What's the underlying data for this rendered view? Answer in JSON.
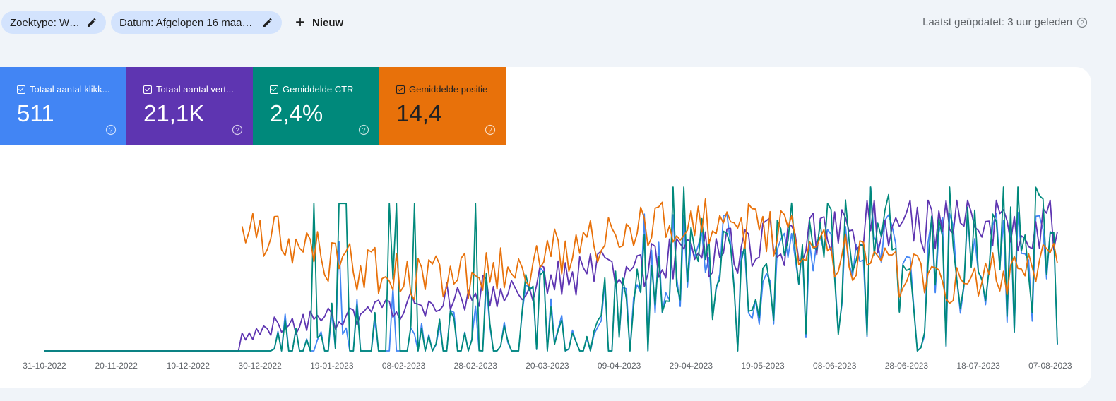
{
  "toolbar": {
    "search_type_chip": "Zoektype: Web",
    "date_chip": "Datum: Afgelopen 16 maan...",
    "new_button": "Nieuw",
    "last_updated": "Laatst geüpdatet: 3 uur geleden"
  },
  "metrics": [
    {
      "label": "Totaal aantal klikk...",
      "value": "511",
      "color": "#4285f4"
    },
    {
      "label": "Totaal aantal vert...",
      "value": "21,1K",
      "color": "#5e35b1"
    },
    {
      "label": "Gemiddelde CTR",
      "value": "2,4%",
      "color": "#00897b"
    },
    {
      "label": "Gemiddelde positie",
      "value": "14,4",
      "color": "#e8710a"
    }
  ],
  "icons": {
    "edit": "pencil-icon",
    "add": "plus-icon",
    "help": "help-circle-icon",
    "checkbox": "checkbox-checked-icon"
  },
  "chart_data": {
    "type": "line",
    "x_ticks": [
      "31-10-2022",
      "20-11-2022",
      "10-12-2022",
      "30-12-2022",
      "19-01-2023",
      "08-02-2023",
      "28-02-2023",
      "20-03-2023",
      "09-04-2023",
      "29-04-2023",
      "19-05-2023",
      "08-06-2023",
      "28-06-2023",
      "18-07-2023",
      "07-08-2023"
    ],
    "x_range": [
      "31-10-2022",
      "09-08-2023"
    ],
    "series": [
      {
        "key": "clicks",
        "color": "#4285f4"
      },
      {
        "key": "impressions",
        "color": "#5e35b1"
      },
      {
        "key": "ctr",
        "color": "#00897b"
      },
      {
        "key": "position",
        "color": "#e8710a"
      }
    ],
    "grid": false,
    "legend": "none"
  }
}
